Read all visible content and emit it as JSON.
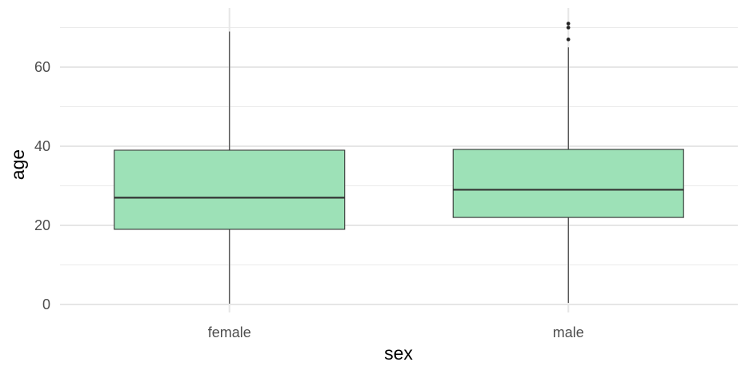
{
  "chart_data": {
    "type": "boxplot",
    "title": "",
    "xlabel": "sex",
    "ylabel": "age",
    "categories": [
      "female",
      "male"
    ],
    "ylim": [
      -2,
      73
    ],
    "yticks": [
      0,
      20,
      40,
      60
    ],
    "grid": true,
    "box_fill": "#9de1b7",
    "box_stroke": "#333333",
    "boxes": [
      {
        "category": "female",
        "whisker_low": 0.2,
        "q1": 19,
        "median": 27,
        "q3": 39,
        "whisker_high": 69,
        "outliers": []
      },
      {
        "category": "male",
        "whisker_low": 0.4,
        "q1": 22,
        "median": 29,
        "q3": 39.2,
        "whisker_high": 65,
        "outliers": [
          67,
          70,
          71
        ]
      }
    ]
  }
}
